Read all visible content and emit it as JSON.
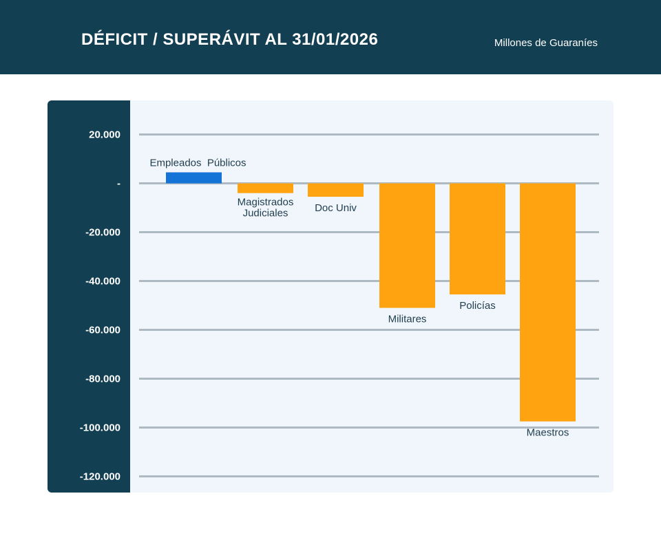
{
  "header": {
    "title": "DÉFICIT / SUPERÁVIT AL 31/01/2026",
    "unit": "Millones de Guaraníes"
  },
  "colors": {
    "header_bg": "#133f52",
    "plot_bg": "#f1f6fc",
    "gridline": "#adbac3",
    "positive": "#1473d6",
    "negative": "#ffa410",
    "label_text": "#1f3d4d",
    "tick_text": "#ffffff"
  },
  "chart_data": {
    "type": "bar",
    "title": "DÉFICIT / SUPERÁVIT AL 31/01/2026",
    "ylabel": "",
    "xlabel": "",
    "ylim": [
      -120000,
      20000
    ],
    "yticks": [
      20000,
      0,
      -20000,
      -40000,
      -60000,
      -80000,
      -100000,
      -120000
    ],
    "ytick_labels": [
      "20.000",
      "-",
      "-20.000",
      "-40.000",
      "-60.000",
      "-80.000",
      "-100.000",
      "-120.000"
    ],
    "grid": true,
    "categories": [
      "Empleados Públicos",
      "Magistrados Judiciales",
      "Doc Univ",
      "Militares",
      "Policías",
      "Maestros"
    ],
    "values": [
      4500,
      -4000,
      -5500,
      -51000,
      -45500,
      -97500
    ]
  }
}
